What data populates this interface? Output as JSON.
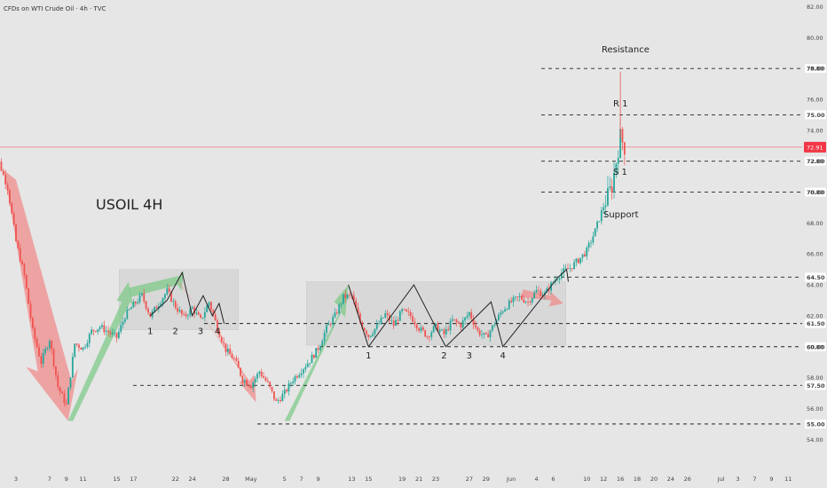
{
  "header": {
    "title": "CFDs on WTI Crude Oil · 4h · TVC"
  },
  "colors": {
    "bg": "#e6e6e6",
    "up": "#26a69a",
    "down": "#ef5350",
    "green_fill": "#7fc98a",
    "red_fill": "#f08c8c",
    "box": "#c8c8c8",
    "current": "#f23645"
  },
  "chart_data": {
    "type": "candlestick",
    "symbol_label": "USOIL 4H",
    "ylim": [
      53.5,
      82.2
    ],
    "y_ticks": [
      54,
      56,
      58,
      60,
      62,
      64,
      66,
      68,
      70,
      72,
      74,
      76,
      78,
      80,
      82
    ],
    "y_tick_labels": [
      "54.00",
      "56.00",
      "58.00",
      "60.00",
      "62.00",
      "64.00",
      "66.00",
      "68.00",
      "70.00",
      "72.00",
      "74.00",
      "76.00",
      "78.00",
      "80.00",
      "82.00"
    ],
    "x_ticks": [
      {
        "d": 3,
        "label": "3"
      },
      {
        "d": 7,
        "label": "7"
      },
      {
        "d": 9,
        "label": "9"
      },
      {
        "d": 11,
        "label": "11"
      },
      {
        "d": 15,
        "label": "15"
      },
      {
        "d": 17,
        "label": "17"
      },
      {
        "d": 22,
        "label": "22"
      },
      {
        "d": 24,
        "label": "24"
      },
      {
        "d": 28,
        "label": "28"
      },
      {
        "d": 31,
        "label": "May"
      },
      {
        "d": 35,
        "label": "5"
      },
      {
        "d": 37,
        "label": "7"
      },
      {
        "d": 39,
        "label": "9"
      },
      {
        "d": 43,
        "label": "13"
      },
      {
        "d": 45,
        "label": "15"
      },
      {
        "d": 49,
        "label": "19"
      },
      {
        "d": 51,
        "label": "21"
      },
      {
        "d": 53,
        "label": "23"
      },
      {
        "d": 57,
        "label": "27"
      },
      {
        "d": 59,
        "label": "29"
      },
      {
        "d": 62,
        "label": "Jun"
      },
      {
        "d": 65,
        "label": "4"
      },
      {
        "d": 67,
        "label": "6"
      },
      {
        "d": 71,
        "label": "10"
      },
      {
        "d": 73,
        "label": "12"
      },
      {
        "d": 75,
        "label": "16"
      },
      {
        "d": 77,
        "label": "18"
      },
      {
        "d": 79,
        "label": "20"
      },
      {
        "d": 81,
        "label": "24"
      },
      {
        "d": 83,
        "label": "26"
      },
      {
        "d": 87,
        "label": "Jul"
      },
      {
        "d": 89,
        "label": "3"
      },
      {
        "d": 91,
        "label": "7"
      },
      {
        "d": 93,
        "label": "9"
      },
      {
        "d": 95,
        "label": "11"
      }
    ],
    "levels": [
      {
        "price": 78.0,
        "label": "78.00",
        "name": "Resistance"
      },
      {
        "price": 75.0,
        "label": "75.00",
        "name": "R 1"
      },
      {
        "price": 72.0,
        "label": "72.00",
        "name": "S 1"
      },
      {
        "price": 70.0,
        "label": "70.00",
        "name": "Support"
      },
      {
        "price": 64.5,
        "label": "64.50",
        "name": ""
      },
      {
        "price": 61.5,
        "label": "61.50",
        "name": ""
      },
      {
        "price": 60.0,
        "label": "60.00",
        "name": ""
      },
      {
        "price": 57.5,
        "label": "57.50",
        "name": ""
      },
      {
        "price": 55.0,
        "label": "55.00",
        "name": ""
      }
    ],
    "current_price": {
      "value": 72.91,
      "label": "72.91"
    },
    "wave_labels": [
      {
        "d": 19,
        "p": 61.0,
        "text": "1"
      },
      {
        "d": 22,
        "p": 61.0,
        "text": "2"
      },
      {
        "d": 25,
        "p": 61.0,
        "text": "3"
      },
      {
        "d": 27,
        "p": 61.0,
        "text": "4"
      },
      {
        "d": 45,
        "p": 59.4,
        "text": "1"
      },
      {
        "d": 54,
        "p": 59.4,
        "text": "2"
      },
      {
        "d": 57,
        "p": 59.4,
        "text": "3"
      },
      {
        "d": 61,
        "p": 59.4,
        "text": "4"
      }
    ],
    "price_path": [
      [
        0,
        72.2
      ],
      [
        1,
        71.9
      ],
      [
        2,
        70.3
      ],
      [
        3,
        66.8
      ],
      [
        4,
        64.6
      ],
      [
        5,
        61.0
      ],
      [
        6,
        59.0
      ],
      [
        7,
        60.5
      ],
      [
        8,
        57.4
      ],
      [
        9,
        56.2
      ],
      [
        10,
        60.2
      ],
      [
        11,
        59.9
      ],
      [
        12,
        61.0
      ],
      [
        13,
        61.3
      ],
      [
        15,
        60.6
      ],
      [
        16,
        62.0
      ],
      [
        17,
        62.7
      ],
      [
        18,
        63.3
      ],
      [
        19,
        62.0
      ],
      [
        20,
        62.8
      ],
      [
        21,
        63.6
      ],
      [
        22,
        62.6
      ],
      [
        23,
        61.9
      ],
      [
        24,
        62.5
      ],
      [
        25,
        61.7
      ],
      [
        26,
        62.9
      ],
      [
        27,
        61.2
      ],
      [
        28,
        59.8
      ],
      [
        29,
        59.2
      ],
      [
        30,
        57.9
      ],
      [
        31,
        57.5
      ],
      [
        32,
        58.4
      ],
      [
        33,
        57.6
      ],
      [
        34,
        56.4
      ],
      [
        35,
        57.0
      ],
      [
        36,
        57.9
      ],
      [
        37,
        58.5
      ],
      [
        38,
        59.1
      ],
      [
        39,
        59.9
      ],
      [
        40,
        61.2
      ],
      [
        41,
        62.0
      ],
      [
        42,
        63.2
      ],
      [
        43,
        63.3
      ],
      [
        44,
        61.6
      ],
      [
        45,
        60.7
      ],
      [
        46,
        61.3
      ],
      [
        47,
        62.1
      ],
      [
        48,
        61.4
      ],
      [
        49,
        62.3
      ],
      [
        50,
        62.0
      ],
      [
        51,
        61.2
      ],
      [
        52,
        60.7
      ],
      [
        53,
        61.3
      ],
      [
        54,
        60.8
      ],
      [
        55,
        61.7
      ],
      [
        56,
        61.4
      ],
      [
        57,
        62.2
      ],
      [
        58,
        61.0
      ],
      [
        59,
        60.6
      ],
      [
        60,
        61.5
      ],
      [
        61,
        62.4
      ],
      [
        62,
        62.9
      ],
      [
        63,
        63.2
      ],
      [
        64,
        62.9
      ],
      [
        65,
        63.6
      ],
      [
        66,
        63.4
      ],
      [
        67,
        64.2
      ],
      [
        68,
        64.8
      ],
      [
        69,
        65.1
      ],
      [
        70,
        65.6
      ],
      [
        71,
        66.2
      ],
      [
        72,
        67.5
      ],
      [
        73,
        69.1
      ],
      [
        74,
        70.4
      ],
      [
        75,
        73.6
      ],
      [
        75.5,
        72.9
      ]
    ]
  }
}
